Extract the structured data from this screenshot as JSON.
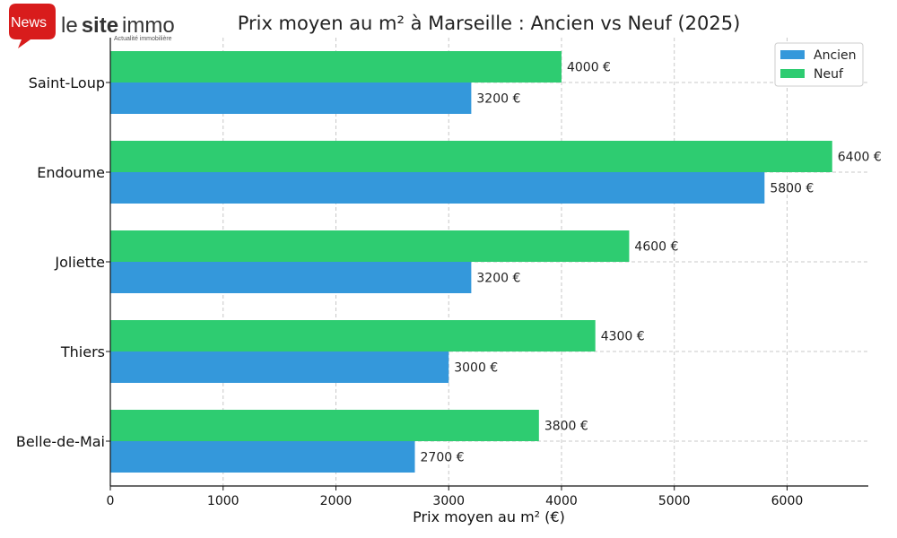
{
  "logo": {
    "badge": "News",
    "brand_light": "le",
    "brand_bold": "site",
    "brand_tail": "immo",
    "tagline": "Actualité immobilière"
  },
  "chart_data": {
    "type": "bar",
    "orientation": "horizontal",
    "title": "Prix moyen au m² à Marseille : Ancien vs Neuf (2025)",
    "xlabel": "Prix moyen au m² (€)",
    "ylabel": "",
    "categories": [
      "Saint-Loup",
      "Endoume",
      "Joliette",
      "Thiers",
      "Belle-de-Mai"
    ],
    "series": [
      {
        "name": "Ancien",
        "color": "#3498db",
        "values": [
          3200,
          5800,
          3200,
          3000,
          2700
        ]
      },
      {
        "name": "Neuf",
        "color": "#2ecc71",
        "values": [
          4000,
          6400,
          4600,
          4300,
          3800
        ]
      }
    ],
    "value_suffix": " €",
    "xticks": [
      0,
      1000,
      2000,
      3000,
      4000,
      5000,
      6000
    ],
    "xlim": [
      0,
      6720
    ],
    "grid": true,
    "legend_position": "top-right"
  }
}
